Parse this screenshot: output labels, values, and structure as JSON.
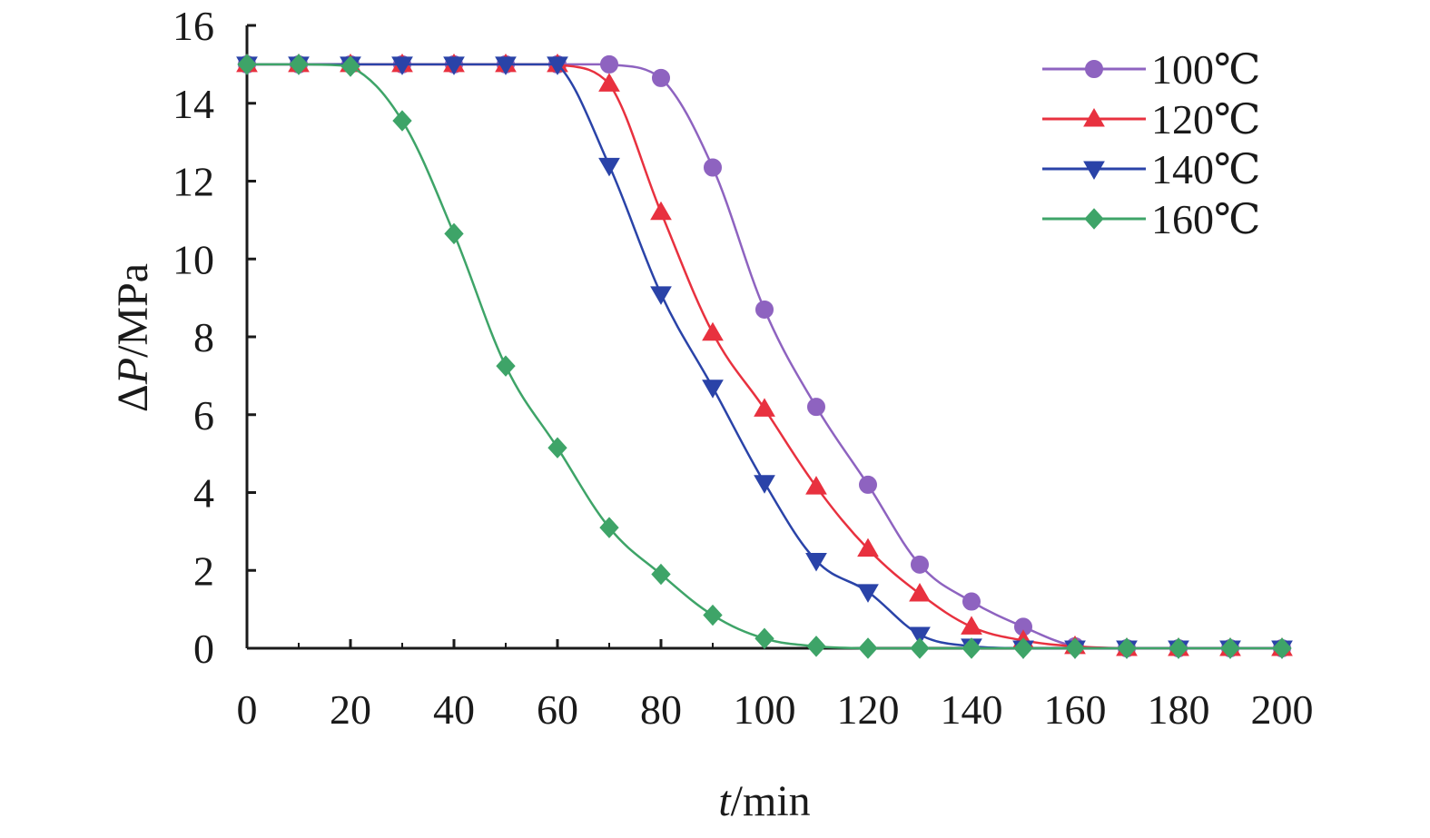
{
  "chart_data": {
    "type": "line",
    "title": "",
    "xlabel": {
      "italic": "t",
      "rest": "/min"
    },
    "ylabel": {
      "prefix": "Δ",
      "italic": "P",
      "rest": "/MPa"
    },
    "xlim": [
      0,
      200
    ],
    "ylim": [
      0,
      16
    ],
    "xticks": [
      0,
      20,
      40,
      60,
      80,
      100,
      120,
      140,
      160,
      180,
      200
    ],
    "yticks": [
      0,
      2,
      4,
      6,
      8,
      10,
      12,
      14,
      16
    ],
    "x": [
      0,
      10,
      20,
      30,
      40,
      50,
      60,
      70,
      80,
      90,
      100,
      110,
      120,
      130,
      140,
      150,
      160,
      170,
      180,
      190,
      200
    ],
    "grid": false,
    "legend": "top-right",
    "series": [
      {
        "name": "100℃",
        "color": "#8e63c0",
        "marker": "circle",
        "values": [
          15,
          15,
          15,
          15,
          15,
          15,
          15,
          15,
          14.65,
          12.35,
          8.7,
          6.2,
          4.2,
          2.15,
          1.2,
          0.55,
          0.05,
          0,
          0,
          0,
          0
        ]
      },
      {
        "name": "120℃",
        "color": "#e8313f",
        "marker": "triangle-up",
        "values": [
          15,
          15,
          15,
          15,
          15,
          15,
          15,
          14.5,
          11.2,
          8.1,
          6.15,
          4.15,
          2.55,
          1.4,
          0.55,
          0.2,
          0.05,
          0,
          0,
          0,
          0
        ]
      },
      {
        "name": "140℃",
        "color": "#2a43a8",
        "marker": "triangle-down",
        "values": [
          15,
          15,
          15,
          15,
          15,
          15,
          15,
          12.4,
          9.1,
          6.7,
          4.25,
          2.25,
          1.45,
          0.35,
          0.05,
          0,
          0,
          0,
          0,
          0,
          0
        ]
      },
      {
        "name": "160℃",
        "color": "#3ea468",
        "marker": "diamond",
        "values": [
          15,
          15,
          14.95,
          13.55,
          10.65,
          7.25,
          5.15,
          3.1,
          1.9,
          0.85,
          0.25,
          0.05,
          0,
          0,
          0,
          0,
          0,
          0,
          0,
          0,
          0
        ]
      }
    ]
  }
}
